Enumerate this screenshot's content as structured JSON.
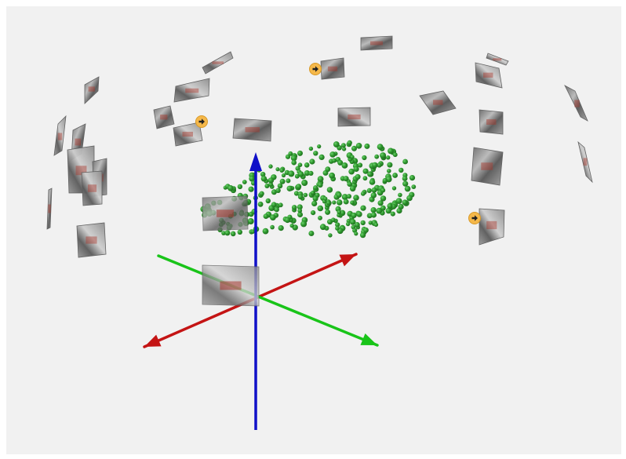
{
  "viewer": {
    "background_color": "#f1f1f1"
  },
  "axes": {
    "x_axis_color": "#c41414",
    "y_axis_color": "#19c419",
    "z_axis_color": "#1010c8"
  },
  "point_cloud": {
    "point_color": "#2f9a2f",
    "point_highlight_color": "#5fc85f"
  },
  "camera_frames": {
    "frame_style": "photo-thumbnail",
    "selected_marker_color": "#f5b84a",
    "selected_marker_icon": "arrow-right-icon"
  }
}
